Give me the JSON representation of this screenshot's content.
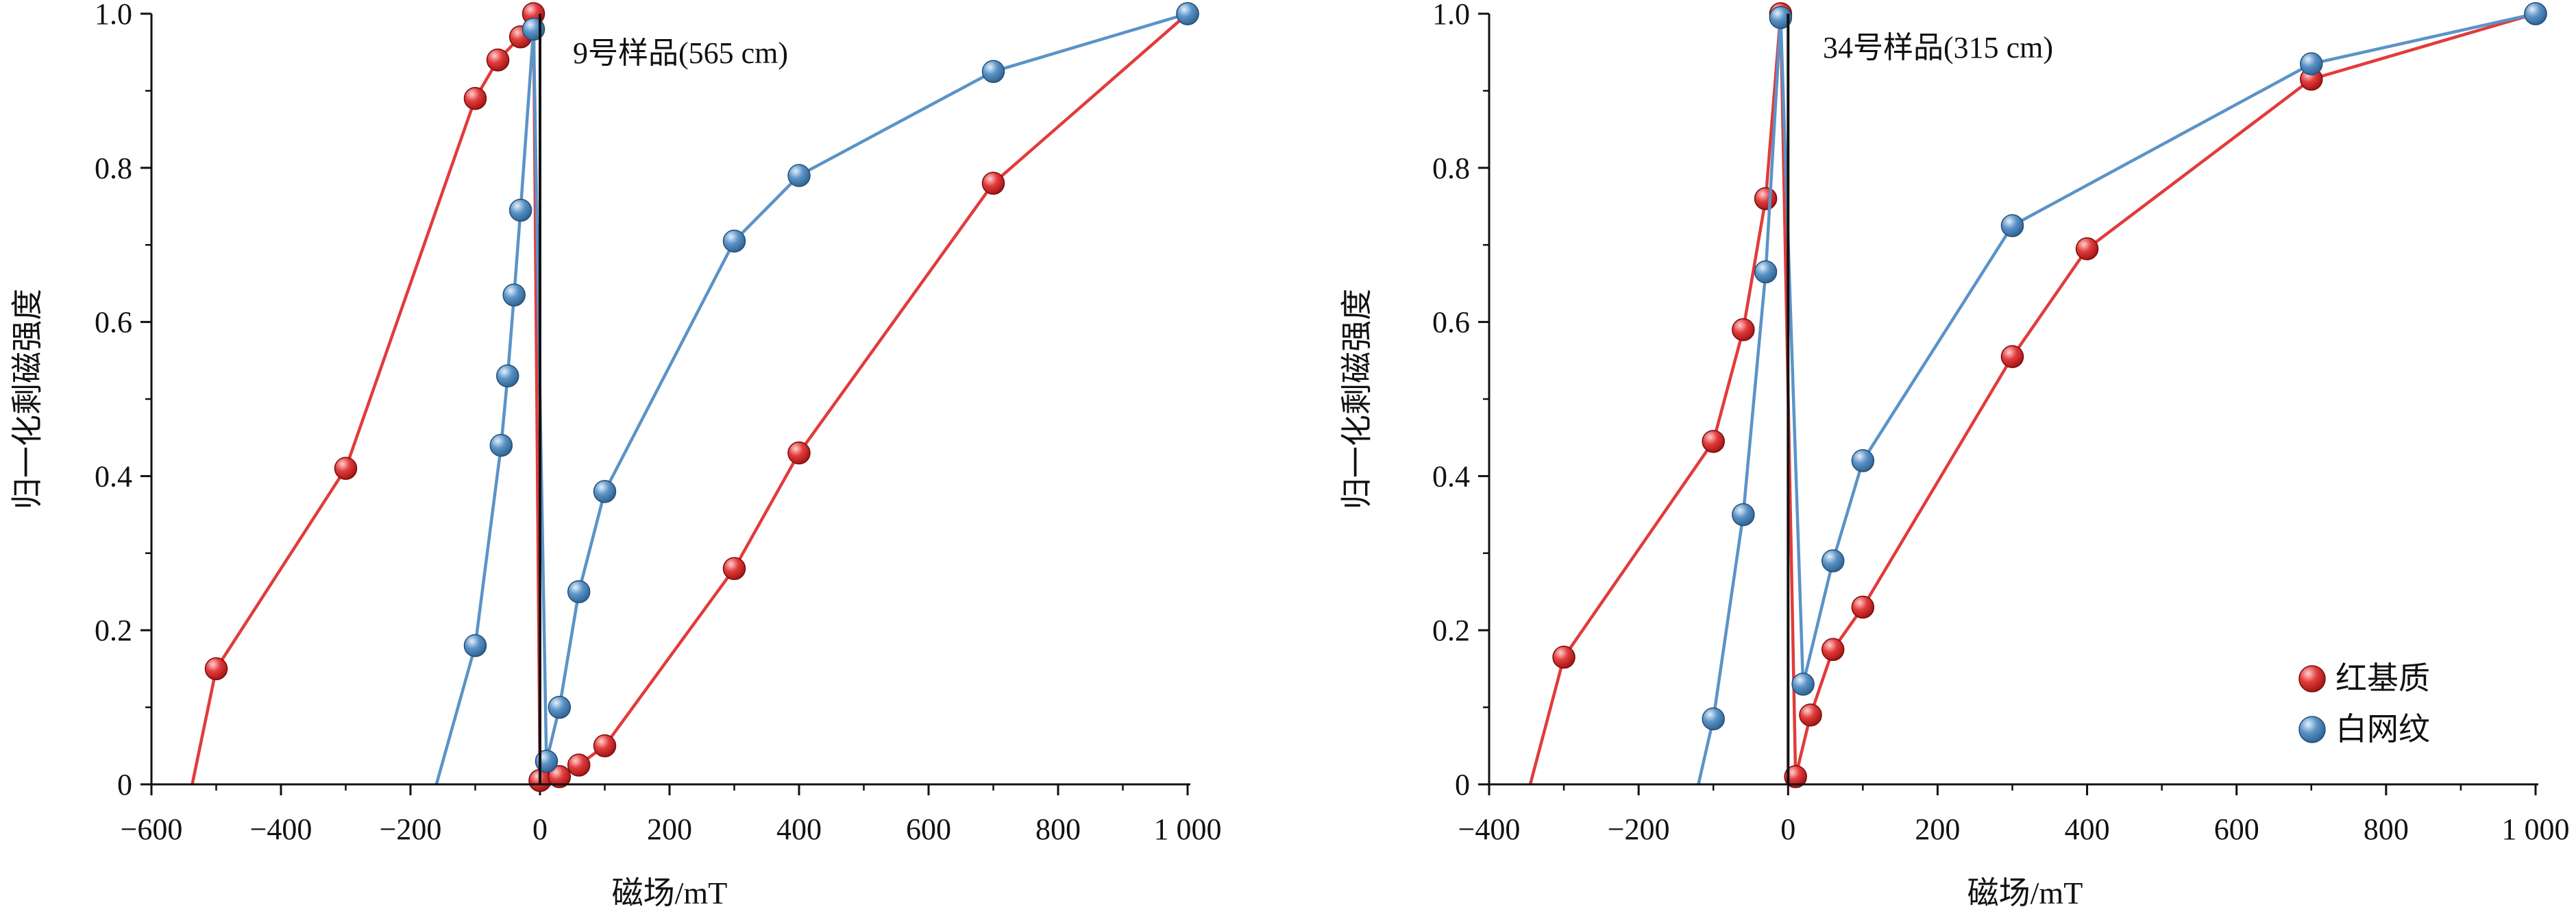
{
  "colors": {
    "red": "#E23B3B",
    "blue": "#5B93C7",
    "axis": "#111111"
  },
  "legend": {
    "items": [
      {
        "label": "红基质",
        "color": "#E23B3B"
      },
      {
        "label": "白网纹",
        "color": "#5B93C7"
      }
    ]
  },
  "chart_data": [
    {
      "type": "line",
      "title": "9号样品(565 cm)",
      "xlabel": "磁场/mT",
      "ylabel": "归一化剩磁强度",
      "xlim": [
        -600,
        1000
      ],
      "ylim": [
        0,
        1.0
      ],
      "xticks": [
        -600,
        -400,
        -200,
        0,
        200,
        400,
        600,
        800,
        1000
      ],
      "xtick_labels": [
        "−600",
        "−400",
        "−200",
        "0",
        "200",
        "400",
        "600",
        "800",
        "1 000"
      ],
      "yticks": [
        0,
        0.2,
        0.4,
        0.6,
        0.8,
        1.0
      ],
      "ytick_labels": [
        "0",
        "0.2",
        "0.4",
        "0.6",
        "0.8",
        "1.0"
      ],
      "series": [
        {
          "name": "红基质",
          "color": "#E23B3B",
          "points": [
            [
              -537,
              0
            ],
            [
              -500,
              0.15
            ],
            [
              -300,
              0.41
            ],
            [
              -100,
              0.89
            ],
            [
              -65,
              0.94
            ],
            [
              -30,
              0.97
            ],
            [
              -10,
              1.0
            ],
            [
              0,
              0.005
            ],
            [
              30,
              0.01
            ],
            [
              60,
              0.025
            ],
            [
              100,
              0.05
            ],
            [
              300,
              0.28
            ],
            [
              400,
              0.43
            ],
            [
              700,
              0.78
            ],
            [
              1000,
              1.0
            ]
          ]
        },
        {
          "name": "白网纹",
          "color": "#5B93C7",
          "points": [
            [
              -160,
              0
            ],
            [
              -100,
              0.18
            ],
            [
              -60,
              0.44
            ],
            [
              -50,
              0.53
            ],
            [
              -40,
              0.635
            ],
            [
              -30,
              0.745
            ],
            [
              -10,
              0.98
            ],
            [
              10,
              0.03
            ],
            [
              30,
              0.1
            ],
            [
              60,
              0.25
            ],
            [
              100,
              0.38
            ],
            [
              300,
              0.705
            ],
            [
              400,
              0.79
            ],
            [
              700,
              0.925
            ],
            [
              1000,
              1.0
            ]
          ]
        }
      ]
    },
    {
      "type": "line",
      "title": "34号样品(315 cm)",
      "xlabel": "磁场/mT",
      "ylabel": "归一化剩磁强度",
      "xlim": [
        -400,
        1000
      ],
      "ylim": [
        0,
        1.0
      ],
      "xticks": [
        -400,
        -200,
        0,
        200,
        400,
        600,
        800,
        1000
      ],
      "xtick_labels": [
        "−400",
        "−200",
        "0",
        "200",
        "400",
        "600",
        "800",
        "1 000"
      ],
      "yticks": [
        0,
        0.2,
        0.4,
        0.6,
        0.8,
        1.0
      ],
      "ytick_labels": [
        "0",
        "0.2",
        "0.4",
        "0.6",
        "0.8",
        "1.0"
      ],
      "series": [
        {
          "name": "红基质",
          "color": "#E23B3B",
          "points": [
            [
              -345,
              0
            ],
            [
              -300,
              0.165
            ],
            [
              -100,
              0.445
            ],
            [
              -60,
              0.59
            ],
            [
              -30,
              0.76
            ],
            [
              -10,
              1.0
            ],
            [
              10,
              0.01
            ],
            [
              30,
              0.09
            ],
            [
              60,
              0.175
            ],
            [
              100,
              0.23
            ],
            [
              300,
              0.555
            ],
            [
              400,
              0.695
            ],
            [
              700,
              0.915
            ],
            [
              1000,
              1.0
            ]
          ]
        },
        {
          "name": "白网纹",
          "color": "#5B93C7",
          "points": [
            [
              -120,
              0
            ],
            [
              -100,
              0.085
            ],
            [
              -60,
              0.35
            ],
            [
              -30,
              0.665
            ],
            [
              -10,
              0.995
            ],
            [
              20,
              0.13
            ],
            [
              60,
              0.29
            ],
            [
              100,
              0.42
            ],
            [
              300,
              0.725
            ],
            [
              700,
              0.935
            ],
            [
              1000,
              1.0
            ]
          ]
        }
      ]
    }
  ]
}
